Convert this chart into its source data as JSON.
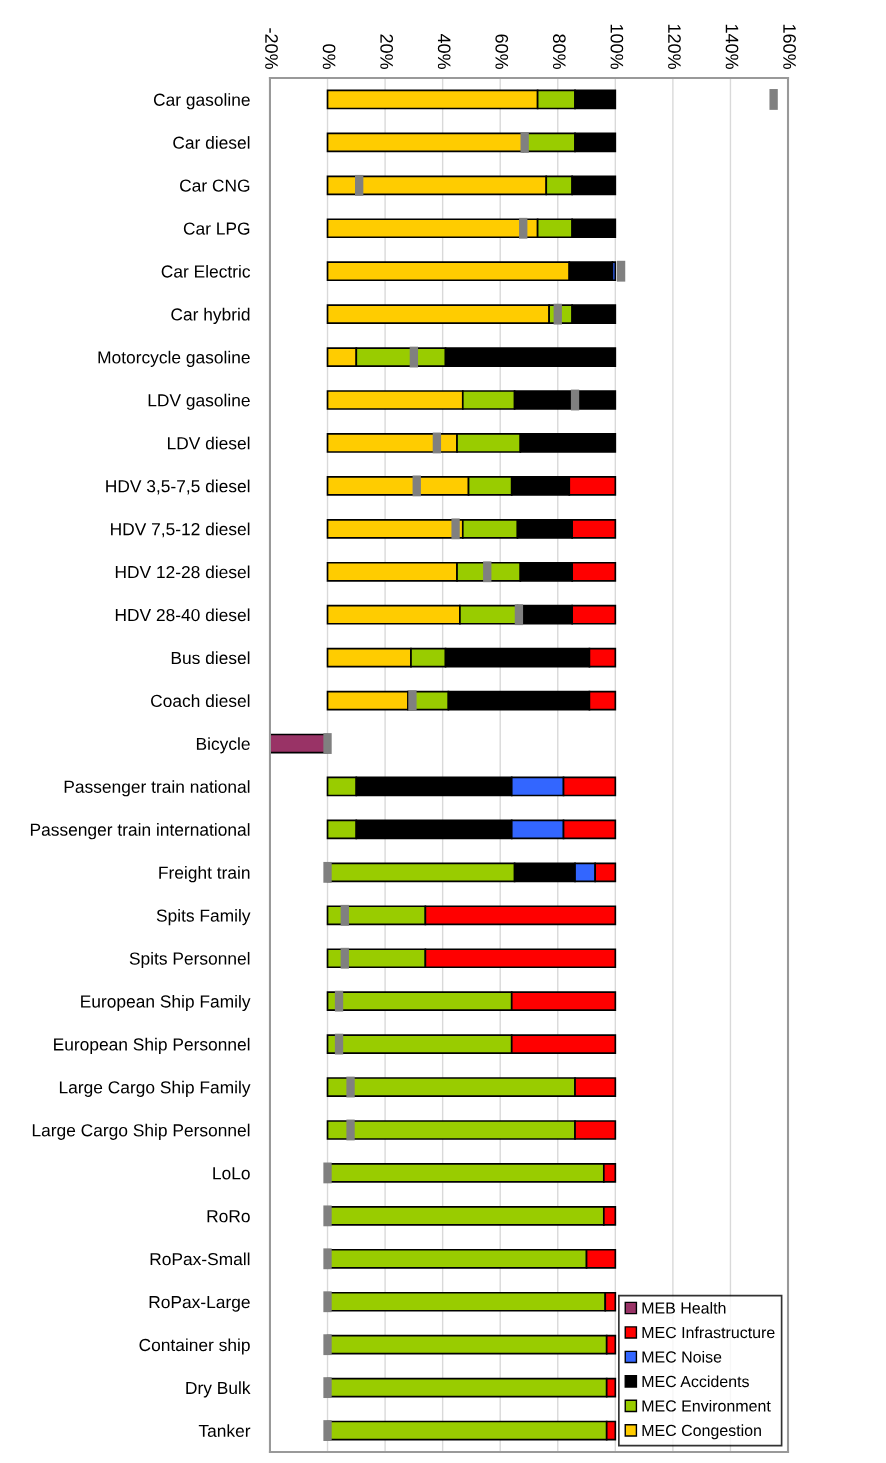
{
  "chart_data": {
    "type": "bar",
    "orientation": "horizontal",
    "stacked": true,
    "categories": [
      "Car gasoline",
      "Car diesel",
      "Car CNG",
      "Car LPG",
      "Car Electric",
      "Car hybrid",
      "Motorcycle gasoline",
      "LDV gasoline",
      "LDV diesel",
      "HDV 3,5-7,5 diesel",
      "HDV 7,5-12 diesel",
      "HDV 12-28 diesel",
      "HDV 28-40 diesel",
      "Bus diesel",
      "Coach diesel",
      "Bicycle",
      "Passenger train national",
      "Passenger train international",
      "Freight train",
      "Spits Family",
      "Spits Personnel",
      "European Ship Family",
      "European Ship Personnel",
      "Large Cargo Ship Family",
      "Large Cargo Ship Personnel",
      "LoLo",
      "RoRo",
      "RoPax-Small",
      "RoPax-Large",
      "Container ship",
      "Dry Bulk",
      "Tanker"
    ],
    "series": [
      {
        "name": "MEC Congestion",
        "color": "#ffcc00",
        "values": [
          73,
          68,
          76,
          73,
          84,
          77,
          10,
          47,
          45,
          49,
          47,
          45,
          46,
          29,
          28,
          0,
          0,
          0,
          0,
          0,
          0,
          0,
          0,
          0,
          0,
          0,
          0,
          0,
          0,
          0,
          0,
          0
        ]
      },
      {
        "name": "MEC Environment",
        "color": "#99cc00",
        "values": [
          13,
          18,
          9,
          12,
          0,
          8,
          31,
          18,
          22,
          15,
          19,
          22,
          20,
          12,
          14,
          0,
          10,
          10,
          65,
          34,
          34,
          64,
          64,
          86,
          86,
          96,
          96,
          90,
          96.5,
          97,
          97,
          97
        ]
      },
      {
        "name": "MEC Accidents",
        "color": "#000000",
        "values": [
          14,
          14,
          15,
          15,
          15,
          15,
          59,
          35,
          33,
          20,
          19,
          18,
          19,
          50,
          49,
          0,
          54,
          54,
          21,
          0,
          0,
          0,
          0,
          0,
          0,
          0,
          0,
          0,
          0,
          0,
          0,
          0
        ]
      },
      {
        "name": "MEC Noise",
        "color": "#3366ff",
        "values": [
          0,
          0,
          0,
          0,
          1,
          0,
          0,
          0,
          0,
          0,
          0,
          0,
          0,
          0,
          0,
          0,
          18,
          18,
          7,
          0,
          0,
          0,
          0,
          0,
          0,
          0,
          0,
          0,
          0,
          0,
          0,
          0
        ]
      },
      {
        "name": "MEC Infrastructure",
        "color": "#ff0000",
        "values": [
          0,
          0,
          0,
          0,
          0,
          0,
          0,
          0,
          0,
          16,
          15,
          15,
          15,
          9,
          9,
          0,
          18,
          18,
          7,
          66,
          66,
          36,
          36,
          14,
          14,
          4,
          4,
          10,
          3.5,
          3,
          3,
          3
        ]
      },
      {
        "name": "MEB Health",
        "color": "#993366",
        "values": [
          0,
          0,
          0,
          0,
          0,
          0,
          0,
          0,
          0,
          0,
          0,
          0,
          0,
          0,
          0,
          -20,
          0,
          0,
          0,
          0,
          0,
          0,
          0,
          0,
          0,
          0,
          0,
          0,
          0,
          0,
          0,
          0
        ]
      },
      {
        "type": "scatter",
        "color": "#808080",
        "values": [
          155,
          68.5,
          11,
          68,
          102,
          80,
          30,
          86,
          38,
          31,
          44.5,
          55.5,
          66.5,
          null,
          29.5,
          0,
          null,
          null,
          0,
          6,
          6,
          4,
          4,
          8,
          8,
          0,
          0,
          0,
          0,
          0,
          0,
          0
        ]
      }
    ],
    "xlim": [
      -20,
      160
    ],
    "xticks": [
      {
        "value": -20,
        "label": "-20%"
      },
      {
        "value": 0,
        "label": "0%"
      },
      {
        "value": 20,
        "label": "20%"
      },
      {
        "value": 40,
        "label": "40%"
      },
      {
        "value": 60,
        "label": "60%"
      },
      {
        "value": 80,
        "label": "80%"
      },
      {
        "value": 100,
        "label": "100%"
      },
      {
        "value": 120,
        "label": "120%"
      },
      {
        "value": 140,
        "label": "140%"
      },
      {
        "value": 160,
        "label": "160%"
      }
    ],
    "grid": "x",
    "legend": "bottom right"
  }
}
